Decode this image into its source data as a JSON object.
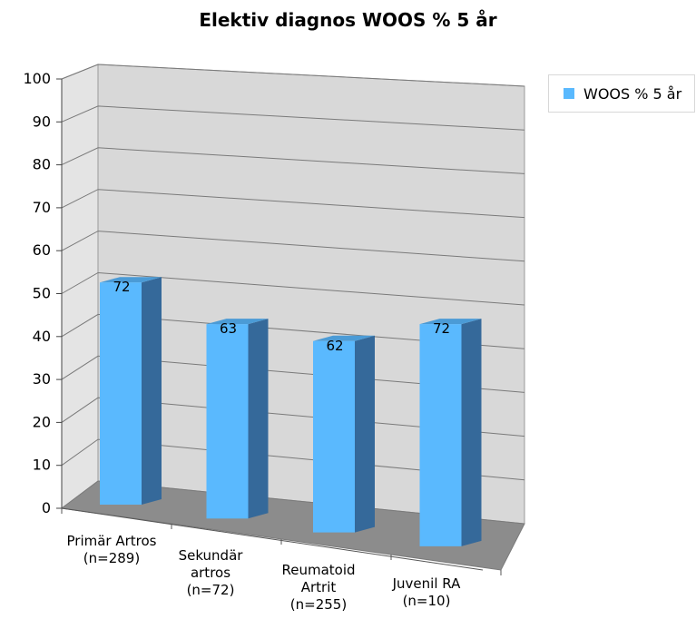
{
  "chart_data": {
    "type": "bar",
    "title": "Elektiv diagnos WOOS % 5 år",
    "categories": [
      [
        "Primär Artros",
        "(n=289)"
      ],
      [
        "Sekundär",
        "artros",
        "(n=72)"
      ],
      [
        "Reumatoid",
        "Artrit",
        "(n=255)"
      ],
      [
        "Juvenil RA",
        "(n=10)"
      ]
    ],
    "series": [
      {
        "name": "WOOS % 5 år",
        "values": [
          72,
          63,
          62,
          72
        ]
      }
    ],
    "ylim": [
      0,
      100
    ],
    "yticks": [
      0,
      10,
      20,
      30,
      40,
      50,
      60,
      70,
      80,
      90,
      100
    ],
    "grid": true,
    "legend": "right",
    "style": "3d",
    "colors": {
      "bar_front": "#5ab9fe",
      "bar_side": "#35699a",
      "bar_top": "#4b9bd6",
      "back_wall": "#d8d8d8",
      "side_wall": "#e4e4e4",
      "floor": "#8c8c8c",
      "grid": "#7a7a7a"
    }
  }
}
